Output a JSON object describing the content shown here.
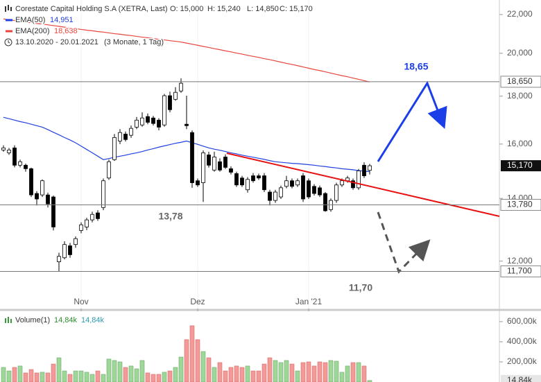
{
  "chart_data": [
    {
      "type": "candlestick",
      "title": "Corestate Capital Holding S.A (XETRA, Last)",
      "ohlc_labels": [
        "O: 15,000",
        "H: 15,240",
        "L: 14,850",
        "C: 15,170"
      ],
      "period": "13.10.2020 - 20.01.2021",
      "period_note": "(3 Monate, 1 Tag)",
      "log_scale": true,
      "ylim": [
        10.68,
        22.8
      ],
      "yticks": [
        {
          "value": 12,
          "label": "12,000"
        },
        {
          "value": 14,
          "label": "14,000"
        },
        {
          "value": 16,
          "label": "16,000"
        },
        {
          "value": 18,
          "label": "18,000"
        },
        {
          "value": 20,
          "label": "20,000"
        },
        {
          "value": 22,
          "label": "22,000"
        }
      ],
      "categories": [
        null,
        null,
        null,
        null,
        null,
        null,
        null,
        null,
        null,
        null,
        null,
        null,
        null,
        null,
        "Nov",
        null,
        null,
        null,
        null,
        null,
        null,
        null,
        null,
        null,
        null,
        null,
        null,
        null,
        null,
        null,
        null,
        null,
        null,
        null,
        null,
        "Dez",
        null,
        null,
        null,
        null,
        null,
        null,
        null,
        null,
        null,
        null,
        null,
        null,
        null,
        null,
        null,
        null,
        null,
        null,
        null,
        "Jan '21",
        null,
        null,
        null,
        null,
        null,
        null,
        null,
        null,
        null,
        null,
        null
      ],
      "open": [
        15.77,
        15.66,
        15.85,
        15.19,
        15.19,
        15.06,
        14.17,
        14.12,
        14.12,
        14.05,
        11.98,
        12.1,
        12.46,
        12.5,
        12.94,
        13.05,
        13.28,
        13.51,
        13.69,
        14.72,
        15.4,
        16.12,
        16.4,
        16.35,
        16.68,
        16.77,
        17.12,
        17.06,
        16.97,
        16.77,
        18.02,
        17.86,
        18.23,
        16.8,
        16.46,
        14.62,
        14.55,
        15.58,
        15.01,
        15.32,
        15.5,
        15.06,
        14.88,
        14.72,
        14.3,
        14.8,
        14.8,
        14.8,
        14.22,
        13.93,
        14.05,
        14.42,
        14.62,
        14.47,
        14.8,
        14.62,
        14.42,
        14.37,
        14.17,
        13.62,
        13.93,
        14.47,
        14.62,
        14.62,
        14.37,
        15.19,
        15.0
      ],
      "high": [
        15.95,
        15.85,
        15.95,
        15.4,
        15.25,
        15.1,
        14.25,
        14.67,
        14.2,
        14.1,
        12.25,
        12.6,
        12.55,
        12.75,
        13.2,
        13.35,
        13.55,
        13.6,
        14.7,
        15.4,
        16.4,
        16.6,
        16.5,
        16.75,
        17.1,
        17.3,
        17.25,
        17.15,
        17.05,
        18.1,
        18.2,
        18.4,
        18.81,
        18.02,
        16.55,
        14.7,
        15.75,
        15.7,
        15.7,
        15.45,
        15.6,
        15.15,
        14.95,
        14.8,
        14.75,
        14.9,
        14.88,
        14.9,
        14.3,
        14.3,
        14.45,
        14.8,
        14.7,
        14.7,
        14.9,
        14.7,
        14.5,
        14.45,
        14.22,
        14.0,
        14.55,
        14.7,
        14.8,
        14.7,
        15.05,
        15.3,
        15.24
      ],
      "low": [
        15.7,
        15.58,
        15.11,
        15.11,
        14.95,
        14.05,
        13.76,
        14.05,
        13.69,
        12.94,
        11.7,
        12.05,
        12.1,
        12.4,
        12.85,
        12.95,
        13.2,
        13.25,
        13.6,
        14.65,
        15.35,
        16.0,
        16.1,
        16.25,
        16.6,
        16.7,
        16.8,
        16.75,
        16.55,
        16.7,
        17.3,
        17.8,
        18.15,
        16.6,
        14.37,
        14.4,
        13.88,
        15.1,
        14.95,
        14.95,
        15.05,
        14.85,
        14.4,
        14.4,
        14.2,
        14.55,
        14.65,
        14.22,
        13.76,
        13.85,
        13.98,
        14.35,
        14.35,
        14.4,
        13.88,
        13.98,
        14.1,
        14.05,
        13.55,
        13.55,
        13.85,
        14.4,
        14.55,
        14.3,
        14.3,
        14.72,
        14.85
      ],
      "close": [
        15.85,
        15.77,
        15.19,
        15.32,
        15.06,
        14.12,
        13.98,
        14.62,
        13.81,
        13.05,
        12.14,
        12.5,
        12.19,
        12.68,
        13.12,
        13.28,
        13.46,
        13.32,
        14.62,
        15.32,
        16.26,
        16.46,
        16.18,
        16.63,
        16.97,
        17.06,
        16.88,
        16.83,
        16.68,
        18.02,
        17.41,
        18.17,
        18.58,
        16.74,
        14.55,
        14.47,
        15.66,
        15.19,
        15.5,
        15.01,
        15.11,
        14.93,
        14.47,
        14.47,
        14.67,
        14.62,
        14.72,
        14.3,
        13.93,
        14.22,
        14.37,
        14.62,
        14.42,
        14.62,
        13.98,
        14.05,
        14.17,
        14.12,
        13.58,
        13.93,
        14.47,
        14.62,
        14.72,
        14.37,
        14.98,
        14.8,
        15.17
      ],
      "up_color": "#ffffff",
      "down_color": "#000000",
      "series": [
        {
          "name": "EMA(50)",
          "color": "#2040e0",
          "last_label": "14,951",
          "values": [
            17.09,
            17.03,
            16.97,
            16.91,
            16.86,
            16.8,
            16.74,
            16.68,
            16.58,
            16.47,
            16.37,
            16.26,
            16.16,
            16.05,
            15.92,
            15.79,
            15.66,
            15.53,
            15.4,
            15.44,
            15.49,
            15.53,
            15.57,
            15.62,
            15.66,
            15.71,
            15.77,
            15.82,
            15.88,
            15.93,
            15.98,
            16.03,
            16.07,
            16.12,
            16.05,
            15.99,
            15.92,
            15.85,
            15.8,
            15.76,
            15.71,
            15.66,
            15.62,
            15.57,
            15.53,
            15.49,
            15.45,
            15.41,
            15.36,
            15.32,
            15.3,
            15.28,
            15.26,
            15.25,
            15.23,
            15.21,
            15.19,
            15.16,
            15.14,
            15.11,
            15.09,
            15.06,
            15.04,
            15.02,
            14.99,
            14.97,
            14.95
          ]
        },
        {
          "name": "EMA(200)",
          "color": "#e8453c",
          "last_label": "18,638",
          "values": [
            21.76,
            21.72,
            21.68,
            21.64,
            21.6,
            21.56,
            21.52,
            21.49,
            21.45,
            21.41,
            21.37,
            21.33,
            21.29,
            21.25,
            21.21,
            21.17,
            21.14,
            21.1,
            21.07,
            21.03,
            20.99,
            20.96,
            20.92,
            20.89,
            20.85,
            20.81,
            20.78,
            20.74,
            20.7,
            20.67,
            20.63,
            20.6,
            20.56,
            20.51,
            20.45,
            20.4,
            20.34,
            20.29,
            20.23,
            20.18,
            20.12,
            20.07,
            20.01,
            19.96,
            19.9,
            19.85,
            19.8,
            19.74,
            19.69,
            19.63,
            19.57,
            19.51,
            19.46,
            19.4,
            19.34,
            19.28,
            19.22,
            19.17,
            19.11,
            19.05,
            18.99,
            18.93,
            18.88,
            18.82,
            18.76,
            18.7,
            18.64
          ]
        }
      ],
      "levels": [
        {
          "value": 18.65,
          "label": "18,650"
        },
        {
          "value": 13.78,
          "label": "13,780"
        },
        {
          "value": 11.7,
          "label": "11,700"
        }
      ],
      "current": {
        "value": 15.17,
        "label": "15,170"
      },
      "annotations": [
        "18,65",
        "13,78",
        "11,70"
      ]
    },
    {
      "type": "volume",
      "title": "Volume(1)",
      "legend_values": [
        "14,84k",
        "14,84k"
      ],
      "up_color": "#9fd69a",
      "down_color": "#f29a98",
      "ylim": [
        0,
        703000
      ],
      "yticks": [
        {
          "value": 200000,
          "label": "200,00k"
        },
        {
          "value": 400000,
          "label": "400,00k"
        },
        {
          "value": 600000,
          "label": "600,00k"
        }
      ],
      "values": [
        145000,
        110000,
        145000,
        159000,
        90000,
        124000,
        90000,
        97000,
        90000,
        179000,
        241000,
        110000,
        76000,
        110000,
        110000,
        97000,
        76000,
        110000,
        76000,
        228000,
        214000,
        200000,
        145000,
        159000,
        131000,
        214000,
        90000,
        76000,
        76000,
        97000,
        110000,
        145000,
        248000,
        421000,
        559000,
        421000,
        303000,
        241000,
        145000,
        193000,
        110000,
        145000,
        159000,
        145000,
        159000,
        110000,
        110000,
        179000,
        241000,
        214000,
        193000,
        214000,
        179000,
        110000,
        193000,
        200000,
        159000,
        200000,
        193000,
        214000,
        207000,
        97000,
        159000,
        193000,
        193000,
        159000,
        14840
      ],
      "last": {
        "value": 14840,
        "label": "14,84k"
      }
    }
  ]
}
